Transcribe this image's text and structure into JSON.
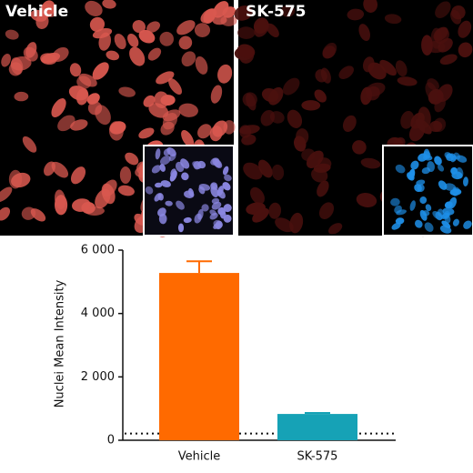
{
  "panels": [
    {
      "label": "Vehicle"
    },
    {
      "label": "SK-575"
    }
  ],
  "chart_data": {
    "type": "bar",
    "y_label": "Nuclei Mean Intensity",
    "categories": [
      "Vehicle",
      "SK-575"
    ],
    "values": [
      5280,
      830
    ],
    "errors": [
      370,
      30
    ],
    "colors": [
      "#ff6a00",
      "#16a2b6"
    ],
    "ylim": [
      0,
      6000
    ],
    "yticks": [
      0,
      {
        "value": 2000,
        "label": "2 000"
      },
      {
        "value": 4000,
        "label": "4 000"
      },
      {
        "value": 6000,
        "label": "6 000"
      }
    ],
    "reference_line": 210
  }
}
